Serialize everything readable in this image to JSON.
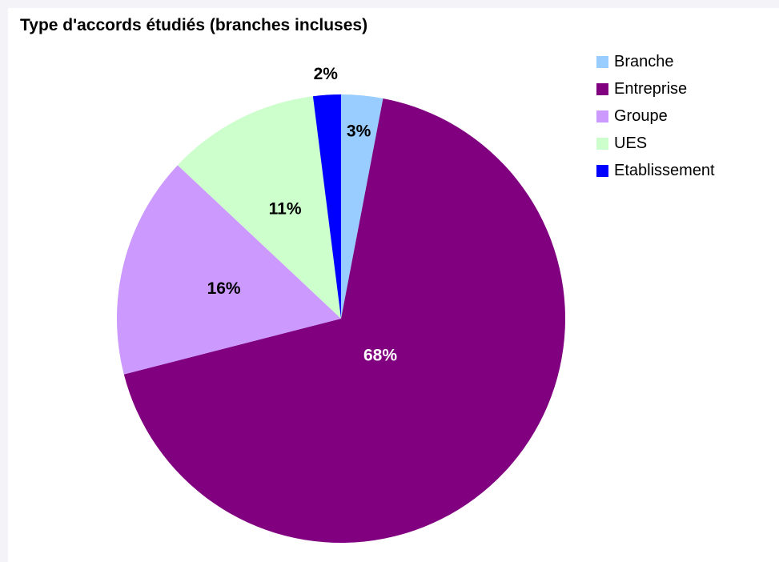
{
  "chart_data": {
    "type": "pie",
    "title": "Type d'accords étudiés (branches incluses)",
    "slices": [
      {
        "label": "Branche",
        "value": 3,
        "display": "3%",
        "color": "#99ccff",
        "label_color": "#000000"
      },
      {
        "label": "Entreprise",
        "value": 68,
        "display": "68%",
        "color": "#800080",
        "label_color": "#ffffff"
      },
      {
        "label": "Groupe",
        "value": 16,
        "display": "16%",
        "color": "#cc99ff",
        "label_color": "#000000"
      },
      {
        "label": "UES",
        "value": 11,
        "display": "11%",
        "color": "#ccffcc",
        "label_color": "#000000"
      },
      {
        "label": "Etablissement",
        "value": 2,
        "display": "2%",
        "color": "#0000ff",
        "label_color": "#000000"
      }
    ],
    "start_angle": "12 o'clock",
    "direction": "clockwise",
    "legend_position": "right"
  },
  "colors": {
    "background": "#f3f3f8",
    "plot_area": "#ffffff"
  }
}
